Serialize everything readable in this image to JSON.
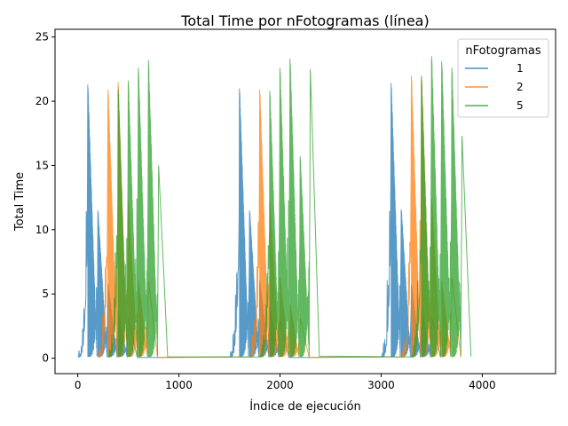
{
  "chart_data": {
    "type": "line",
    "title": "Total Time por nFotogramas (línea)",
    "xlabel": "Índice de ejecución",
    "ylabel": "Total Time",
    "xlim": [
      -225,
      4725
    ],
    "ylim": [
      -1.2,
      25.6
    ],
    "xticks": [
      0,
      1000,
      2000,
      3000,
      4000
    ],
    "yticks": [
      0,
      5,
      10,
      15,
      20,
      25
    ],
    "grid": false,
    "legend": {
      "title": "nFotogramas",
      "placement": "top-right"
    },
    "x_period": 1500,
    "cycle_length": 100,
    "block_length": 300,
    "series": [
      {
        "name": "1",
        "color": "#1f77b4",
        "offset": 0,
        "block_peaks": [
          21.3,
          11.5,
          5.8,
          3.6,
          3.2
        ],
        "repeat_peaks": [
          [
            21.0,
            11.5,
            6.0,
            4.0,
            3.0
          ],
          [
            21.4,
            11.6,
            5.7,
            4.0,
            3.2
          ]
        ]
      },
      {
        "name": "2",
        "color": "#ff7f0e",
        "offset": 200,
        "block_peaks": [
          20.9,
          21.5,
          12.2,
          6.1,
          6.0
        ],
        "repeat_peaks": [
          [
            20.9,
            12.2,
            6.3,
            4.2,
            3.1
          ],
          [
            22.0,
            21.8,
            12.4,
            6.0,
            6.3
          ]
        ]
      },
      {
        "name": "5",
        "color": "#2ca02c",
        "offset": 300,
        "block_peaks": [
          20.9,
          21.6,
          22.6,
          23.2,
          15.0
        ],
        "repeat_peaks": [
          [
            20.8,
            22.6,
            23.3,
            15.7,
            22.5
          ],
          [
            22.0,
            23.5,
            23.1,
            22.6,
            17.3
          ]
        ]
      }
    ]
  }
}
